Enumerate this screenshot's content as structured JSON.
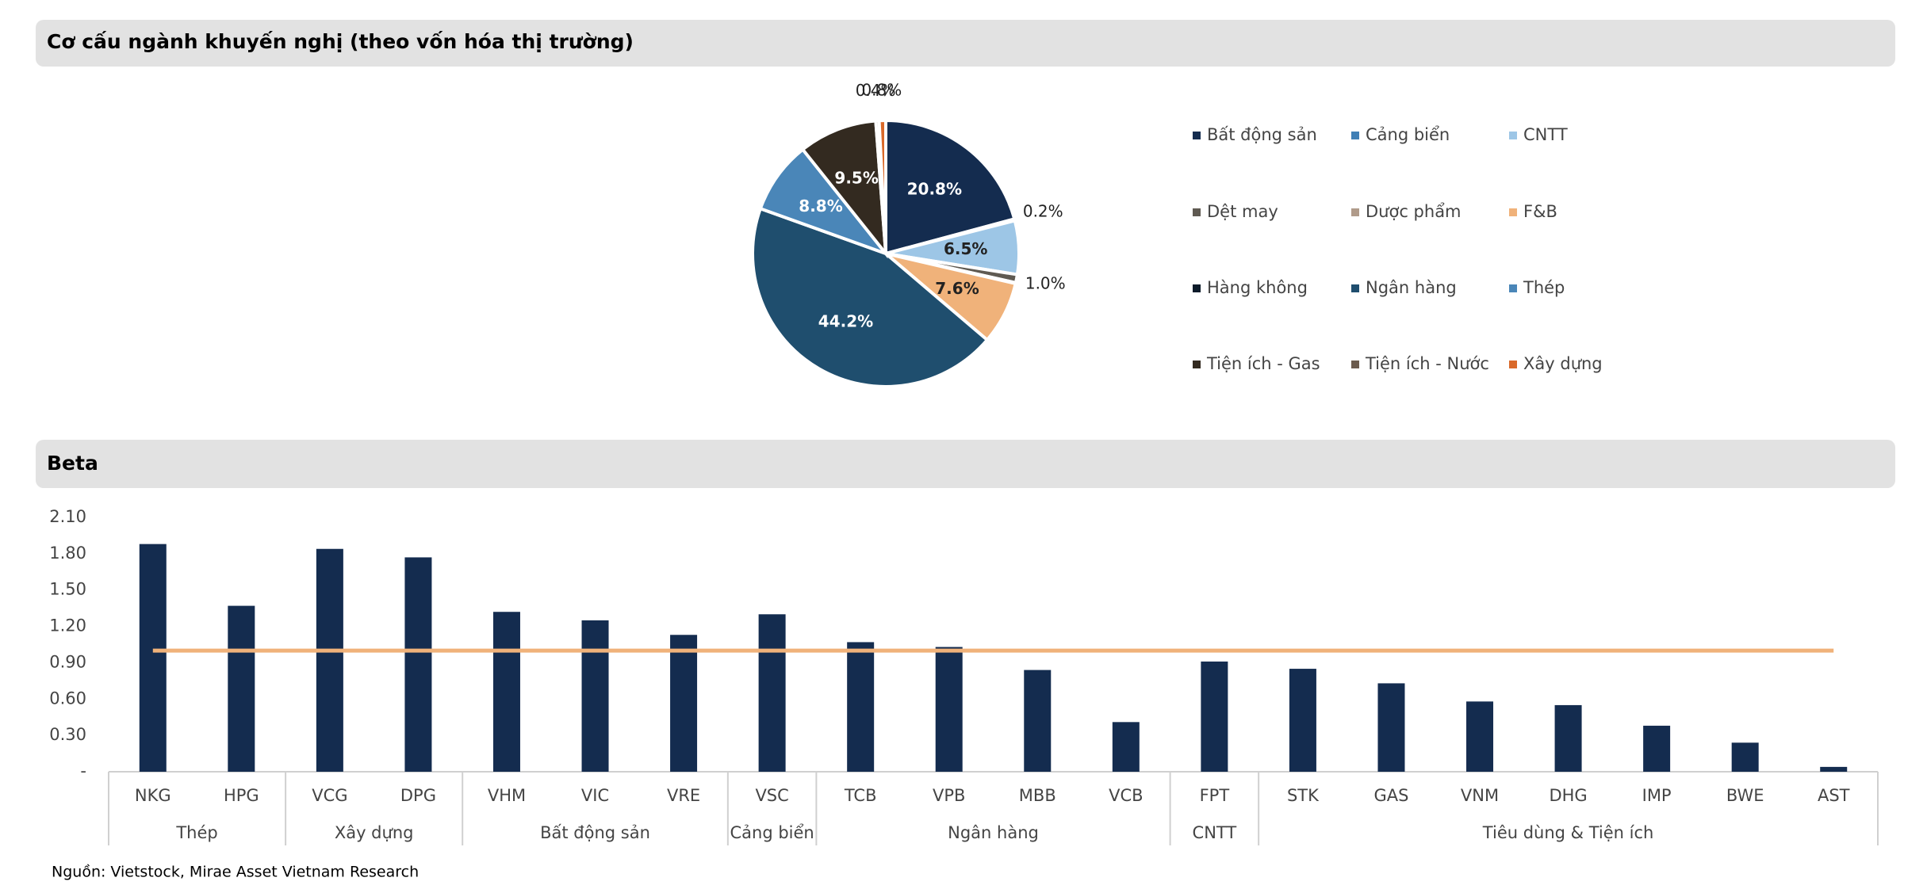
{
  "chart_data": [
    {
      "type": "pie",
      "title": "Cơ cấu ngành khuyến nghị (theo vốn hóa thị trường)",
      "categories": [
        "Bất động sản",
        "Cảng biển",
        "CNTT",
        "Dệt may",
        "Dược phẩm",
        "F&B",
        "Hàng không",
        "Ngân hàng",
        "Thép",
        "Tiện ích - Gas",
        "Tiện ích - Nước",
        "Xây dựng"
      ],
      "values": [
        20.8,
        0.2,
        6.5,
        1.0,
        0.1,
        7.6,
        0,
        44.2,
        8.8,
        9.5,
        0.4,
        0.8
      ],
      "value_labels": [
        "20.8%",
        "0.2%",
        "6.5%",
        "1.0%",
        null,
        "7.6%",
        null,
        "44.2%",
        "8.8%",
        "9.5%",
        "0.4%",
        "0.8%"
      ],
      "colors": [
        "#142c4f",
        "#3f7fb5",
        "#9dc6e6",
        "#5f5a52",
        "#b09b8a",
        "#f0b27a",
        "#0d1b2a",
        "#1f4e6e",
        "#4a86b8",
        "#332a20",
        "#6b5b4d",
        "#d9692a"
      ]
    },
    {
      "type": "bar",
      "title": "Beta",
      "categories": [
        "NKG",
        "HPG",
        "VCG",
        "DPG",
        "VHM",
        "VIC",
        "VRE",
        "VSC",
        "TCB",
        "VPB",
        "MBB",
        "VCB",
        "FPT",
        "STK",
        "GAS",
        "VNM",
        "DHG",
        "IMP",
        "BWE",
        "AST"
      ],
      "groups": [
        {
          "label": "Thép",
          "span": 2
        },
        {
          "label": "Xây dựng",
          "span": 2
        },
        {
          "label": "Bất động sản",
          "span": 3
        },
        {
          "label": "Cảng biển",
          "span": 1
        },
        {
          "label": "Ngân hàng",
          "span": 4
        },
        {
          "label": "CNTT",
          "span": 1
        },
        {
          "label": "Tiêu dùng & Tiện ích",
          "span": 7
        }
      ],
      "series": [
        {
          "type": "bar",
          "color": "#142c4f",
          "values": [
            1.88,
            1.37,
            1.84,
            1.77,
            1.32,
            1.25,
            1.13,
            1.3,
            1.07,
            1.03,
            0.84,
            0.41,
            0.91,
            0.85,
            0.73,
            0.58,
            0.55,
            0.38,
            0.24,
            0.04
          ]
        },
        {
          "type": "line",
          "color": "#f0b27a",
          "values": [
            1,
            1,
            1,
            1,
            1,
            1,
            1,
            1,
            1,
            1,
            1,
            1,
            1,
            1,
            1,
            1,
            1,
            1,
            1,
            1
          ]
        }
      ],
      "ylim": [
        0,
        2.1
      ],
      "yticks": [
        {
          "value": 0,
          "label": "-"
        },
        {
          "value": 0.3,
          "label": "0.30"
        },
        {
          "value": 0.6,
          "label": "0.60"
        },
        {
          "value": 0.9,
          "label": "0.90"
        },
        {
          "value": 1.2,
          "label": "1.20"
        },
        {
          "value": 1.5,
          "label": "1.50"
        },
        {
          "value": 1.8,
          "label": "1.80"
        },
        {
          "value": 2.1,
          "label": "2.10"
        }
      ],
      "source": "Nguồn: Vietstock, Mirae Asset Vietnam Research"
    }
  ]
}
